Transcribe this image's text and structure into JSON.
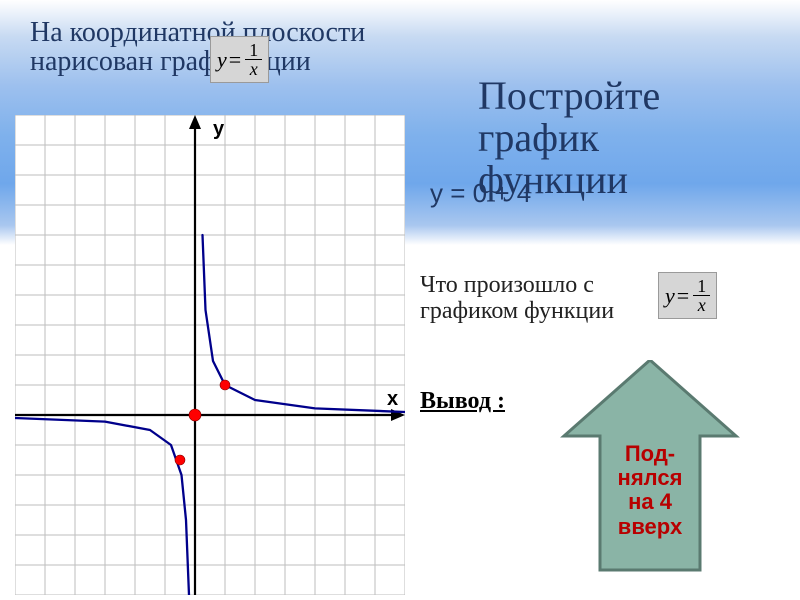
{
  "header": {
    "title_line1": "На координатной плоскости",
    "title_line2": "нарисован граф               ункции"
  },
  "formula1": {
    "lhs": "y",
    "eq": "=",
    "num": "1",
    "den": "x"
  },
  "task": {
    "line1": "Постройте",
    "line2": "график",
    "line3": "функции"
  },
  "overlap_equation": "y = 0 + 4",
  "question": {
    "line1": "Что произошло с",
    "line2": "графиком функции"
  },
  "formula2": {
    "lhs": "y",
    "eq": "=",
    "num": "1",
    "den": "x"
  },
  "conclusion_label": "Вывод :",
  "arrow": {
    "line1": "Под-",
    "line2": "нялся",
    "line3": "на 4",
    "line4": "вверх",
    "fill_color": "#8ab4a6",
    "stroke_color": "#5a7a70",
    "text_color": "#b80000"
  },
  "graph": {
    "grid_cols": 13,
    "grid_rows": 16,
    "cell_size": 30,
    "grid_color": "#bdbdbd",
    "bg_color": "#ffffff",
    "axis_color": "#000000",
    "curve_color": "#00008b",
    "x_label": "x",
    "y_label": "y",
    "origin_col": 6,
    "origin_row": 10,
    "points": [
      {
        "col": 7,
        "row": 9,
        "color": "#ff0000"
      },
      {
        "col": 6,
        "row": 10,
        "color": "#ff0000",
        "big": true
      },
      {
        "col": 5.5,
        "row": 11.5,
        "color": "#ff0000"
      }
    ],
    "upper_branch": [
      {
        "c": 6.25,
        "r": 4.0
      },
      {
        "c": 6.35,
        "r": 6.5
      },
      {
        "c": 6.6,
        "r": 8.2
      },
      {
        "c": 7.0,
        "r": 9.0
      },
      {
        "c": 8.0,
        "r": 9.5
      },
      {
        "c": 10.0,
        "r": 9.78
      },
      {
        "c": 13.0,
        "r": 9.9
      }
    ],
    "lower_branch": [
      {
        "c": 0.0,
        "r": 10.1
      },
      {
        "c": 3.0,
        "r": 10.22
      },
      {
        "c": 4.5,
        "r": 10.5
      },
      {
        "c": 5.2,
        "r": 11.0
      },
      {
        "c": 5.55,
        "r": 12.0
      },
      {
        "c": 5.7,
        "r": 13.5
      },
      {
        "c": 5.8,
        "r": 16.0
      }
    ]
  },
  "colors": {
    "title": "#203864",
    "band_top": "#c7daf2",
    "band_mid": "#7fb1ec"
  }
}
